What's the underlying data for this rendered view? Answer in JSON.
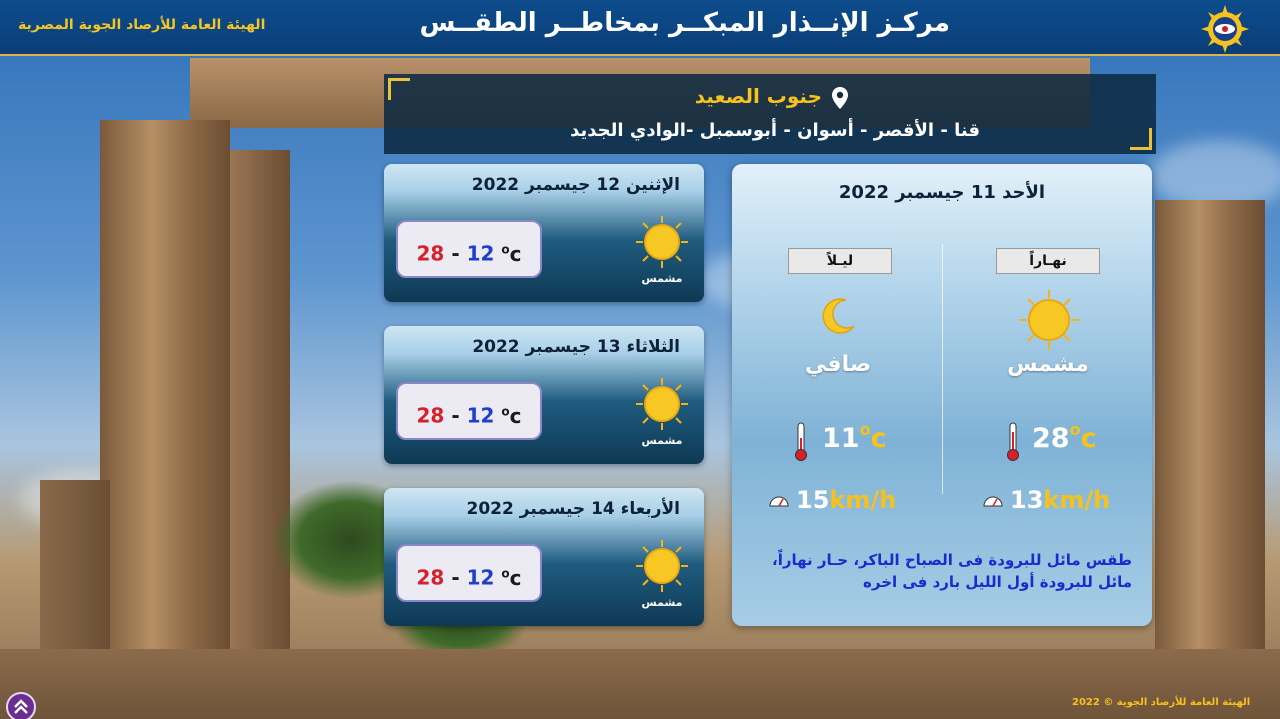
{
  "header": {
    "title": "مركـز الإنــذار المبكــر بمخاطــر الطقــس",
    "org": "الهيئة العامة للأرصاد الجوية المصرية"
  },
  "region": {
    "name": "جنوب الصعيد",
    "cities": "قنا - الأقصر - أسوان - أبوسمبل -الوادي الجديد"
  },
  "forecasts": [
    {
      "date": "الإثنين 12 جيسمبر 2022",
      "max": "28",
      "min": "12",
      "unit": "c",
      "sky": "مشمس"
    },
    {
      "date": "الثلاثاء 13 جيسمبر 2022",
      "max": "28",
      "min": "12",
      "unit": "c",
      "sky": "مشمس"
    },
    {
      "date": "الأربعاء 14 جيسمبر 2022",
      "max": "28",
      "min": "12",
      "unit": "c",
      "sky": "مشمس"
    }
  ],
  "today": {
    "date": "الأحد 11 جيسمبر 2022",
    "day": {
      "label": "نهـاراً",
      "condition": "مشمس",
      "temp": "28",
      "wind_speed": "13",
      "wind_unit": "km/h"
    },
    "night": {
      "label": "ليـلاً",
      "condition": "صافي",
      "temp": "11",
      "wind_speed": "15",
      "wind_unit": "km/h"
    },
    "temp_unit": "c",
    "description": "طقس مائل للبرودة فى الصباح الباكر، حـار نهاراً، مائل للبرودة أول الليل بارد فى اخره"
  },
  "footer": {
    "copyright": "الهيئة العامة للأرصاد الجوية © 2022"
  },
  "colors": {
    "header_bg": "#0a3e78",
    "accent_yellow": "#f6c21e",
    "max_red": "#d8202a",
    "min_blue": "#1f3ec9"
  },
  "icons": {
    "location": "pin-icon",
    "sun": "sun-icon",
    "moon": "moon-icon",
    "thermometer": "thermometer-icon",
    "wind": "gauge-icon",
    "scroll": "double-chevron-up-icon"
  }
}
